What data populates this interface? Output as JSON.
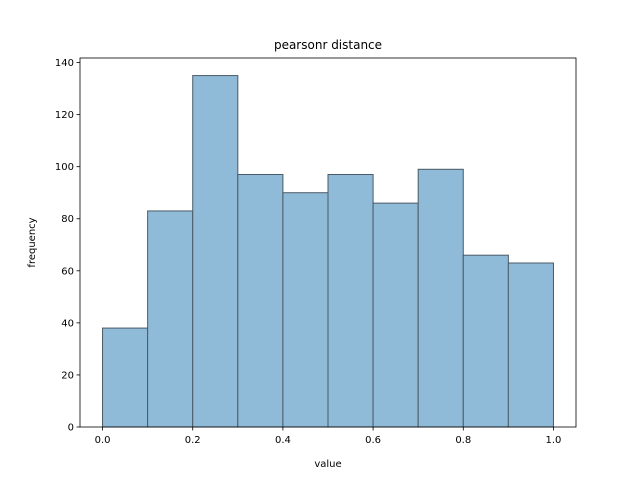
{
  "chart_data": {
    "type": "histogram",
    "title": "pearsonr distance",
    "x_label": "value",
    "y_label": "frequency",
    "bins": [
      0.0,
      0.1,
      0.2,
      0.3,
      0.4,
      0.5,
      0.6,
      0.7,
      0.8,
      0.9,
      1.0
    ],
    "values": [
      38,
      83,
      135,
      97,
      90,
      97,
      86,
      99,
      66,
      63
    ],
    "color": "#8fbbd9",
    "edgecolor": "#4a5a66",
    "xlim": [
      -0.05,
      1.05
    ],
    "ylim": [
      0,
      141.75
    ],
    "xticks": [
      {
        "value": 0.0,
        "label": "0.0"
      },
      {
        "value": 0.2,
        "label": "0.2"
      },
      {
        "value": 0.4,
        "label": "0.4"
      },
      {
        "value": 0.6,
        "label": "0.6"
      },
      {
        "value": 0.8,
        "label": "0.8"
      },
      {
        "value": 1.0,
        "label": "1.0"
      }
    ],
    "yticks": [
      0,
      20,
      40,
      60,
      80,
      100,
      120,
      140
    ]
  }
}
